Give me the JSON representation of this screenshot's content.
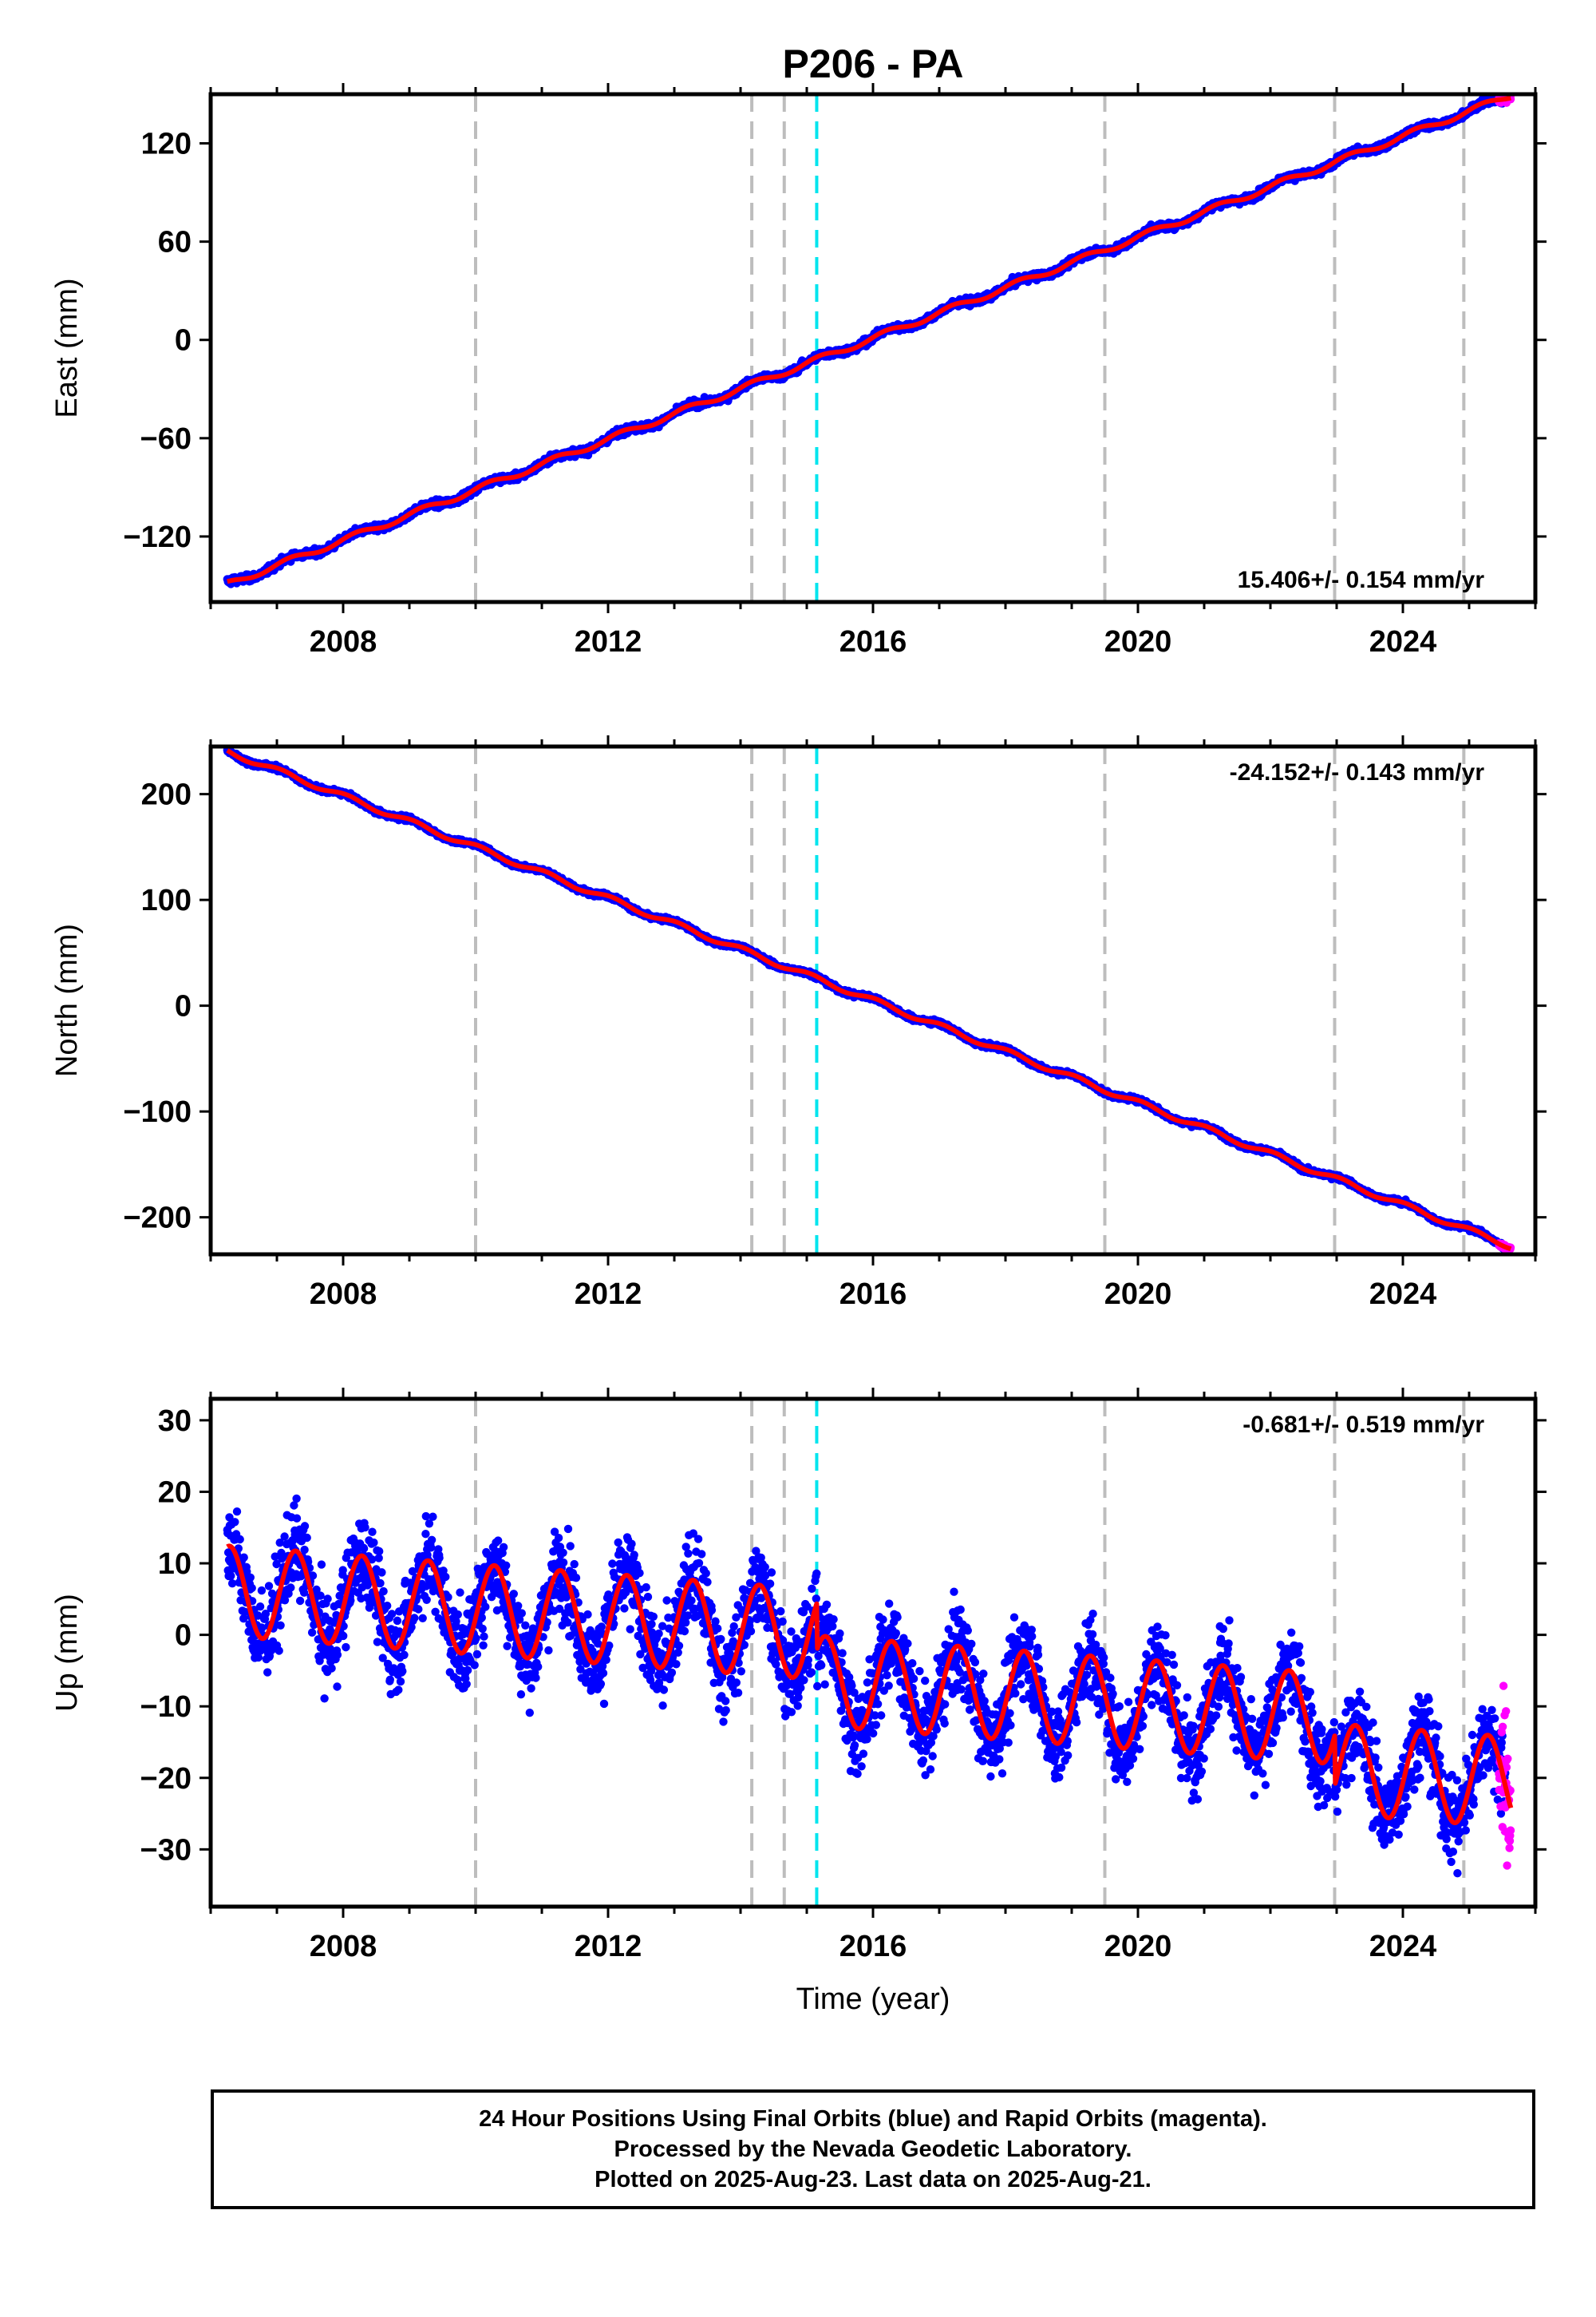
{
  "title": "P206 - PA",
  "colors": {
    "final_orbits": "#0000ff",
    "rapid_orbits": "#ff00ff",
    "model": "#ff0000",
    "equipment_change": "#bdbdbd",
    "earthquake": "#00e5ee"
  },
  "chart_data": [
    {
      "type": "scatter",
      "id": "east",
      "ylabel": "East (mm)",
      "xlabel": "",
      "xlim": [
        2006.0,
        2026.0
      ],
      "ylim": [
        -160,
        150
      ],
      "yticks": [
        -120,
        -60,
        0,
        60,
        120
      ],
      "xticks": [
        2008,
        2012,
        2016,
        2020,
        2024
      ],
      "rate_label": "15.406+/- 0.154 mm/yr",
      "rate_position": "bottom-right",
      "vertical_lines_equipment": [
        2010.0,
        2014.17,
        2014.66,
        2019.5,
        2022.97,
        2024.92
      ],
      "vertical_lines_earthquake": [
        2015.15
      ],
      "model": {
        "kind": "linear+seasonal",
        "ref_epoch": 2016.0,
        "value_at_ref": 1.0,
        "rate_mm_per_yr": 15.406,
        "annual_amplitude": 1.8,
        "annual_phase": 0.3,
        "steps": []
      },
      "noise_mm": 1.5,
      "data_start": 2006.25,
      "data_end": 2025.55,
      "rapid_start": 2025.45,
      "rapid_end": 2025.63
    },
    {
      "type": "scatter",
      "id": "north",
      "ylabel": "North (mm)",
      "xlabel": "",
      "xlim": [
        2006.0,
        2026.0
      ],
      "ylim": [
        -235,
        245
      ],
      "yticks": [
        -200,
        -100,
        0,
        100,
        200
      ],
      "xticks": [
        2008,
        2012,
        2016,
        2020,
        2024
      ],
      "rate_label": "-24.152+/- 0.143 mm/yr",
      "rate_position": "top-right",
      "vertical_lines_equipment": [
        2010.0,
        2014.17,
        2014.66,
        2019.5,
        2022.97,
        2024.92
      ],
      "vertical_lines_earthquake": [
        2015.15
      ],
      "model": {
        "kind": "linear+seasonal",
        "ref_epoch": 2016.0,
        "value_at_ref": 5.0,
        "rate_mm_per_yr": -24.152,
        "annual_amplitude": 2.5,
        "annual_phase": 1.2,
        "steps": []
      },
      "noise_mm": 1.6,
      "data_start": 2006.25,
      "data_end": 2025.55,
      "rapid_start": 2025.45,
      "rapid_end": 2025.63
    },
    {
      "type": "scatter",
      "id": "up",
      "ylabel": "Up (mm)",
      "xlabel": "Time (year)",
      "xlim": [
        2006.0,
        2026.0
      ],
      "ylim": [
        -38,
        33
      ],
      "yticks": [
        -30,
        -20,
        -10,
        0,
        10,
        20,
        30
      ],
      "xticks": [
        2008,
        2012,
        2016,
        2020,
        2024
      ],
      "rate_label": "-0.681+/- 0.519 mm/yr",
      "rate_position": "top-right",
      "vertical_lines_equipment": [
        2010.0,
        2014.17,
        2014.66,
        2019.5,
        2022.97,
        2024.92
      ],
      "vertical_lines_earthquake": [
        2015.15
      ],
      "model": {
        "kind": "linear+seasonal",
        "ref_epoch": 2016.0,
        "value_at_ref": -0.5,
        "rate_mm_per_yr": -0.681,
        "annual_amplitude": 6.3,
        "annual_phase": -0.2,
        "steps": [
          {
            "epoch": 2015.15,
            "offset": -6.5
          },
          {
            "epoch": 2022.97,
            "offset": -7.0
          }
        ]
      },
      "noise_mm": 4.2,
      "data_start": 2006.25,
      "data_end": 2025.55,
      "rapid_start": 2025.45,
      "rapid_end": 2025.63
    }
  ],
  "footer": {
    "line1": "24 Hour Positions Using Final Orbits (blue) and Rapid Orbits (magenta).",
    "line2": "Processed by the Nevada Geodetic Laboratory.",
    "line3": "Plotted on 2025-Aug-23. Last data on 2025-Aug-21."
  }
}
